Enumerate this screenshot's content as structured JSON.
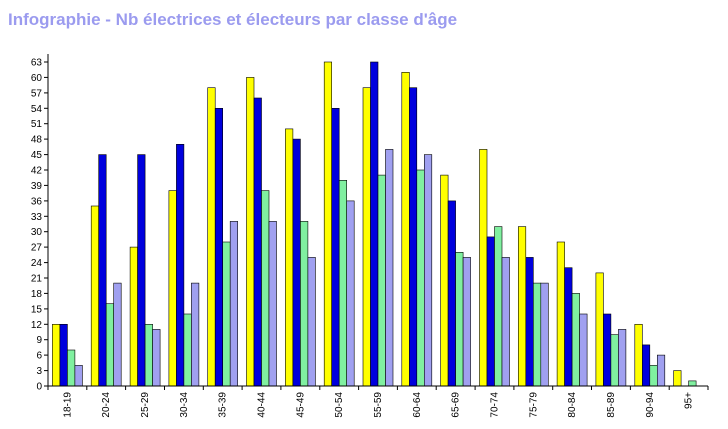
{
  "chart_data": {
    "type": "bar",
    "title": "Infographie - Nb électrices et électeurs par classe d'âge",
    "categories": [
      "18-19",
      "20-24",
      "25-29",
      "30-34",
      "35-39",
      "40-44",
      "45-49",
      "50-54",
      "55-59",
      "60-64",
      "65-69",
      "70-74",
      "75-79",
      "80-84",
      "85-89",
      "90-94",
      "95+"
    ],
    "series": [
      {
        "color": "#ffff00",
        "values": [
          12,
          35,
          27,
          38,
          58,
          60,
          50,
          63,
          58,
          61,
          41,
          46,
          31,
          28,
          22,
          12,
          3
        ]
      },
      {
        "color": "#0000dd",
        "values": [
          12,
          45,
          45,
          47,
          54,
          56,
          48,
          54,
          63,
          58,
          36,
          29,
          25,
          23,
          14,
          8,
          0
        ]
      },
      {
        "color": "#80f0a0",
        "values": [
          7,
          16,
          12,
          14,
          28,
          38,
          32,
          40,
          41,
          42,
          26,
          31,
          20,
          18,
          10,
          4,
          1
        ]
      },
      {
        "color": "#a0a0f0",
        "values": [
          4,
          20,
          11,
          20,
          32,
          32,
          25,
          36,
          46,
          45,
          25,
          25,
          20,
          14,
          11,
          6,
          0
        ]
      }
    ],
    "ylim": [
      0,
      63
    ],
    "yticks": [
      0,
      3,
      6,
      9,
      12,
      15,
      18,
      21,
      24,
      27,
      30,
      33,
      36,
      39,
      42,
      45,
      48,
      51,
      54,
      57,
      60,
      63
    ],
    "grid": false,
    "legend": "none",
    "xlabel": "",
    "ylabel": ""
  }
}
